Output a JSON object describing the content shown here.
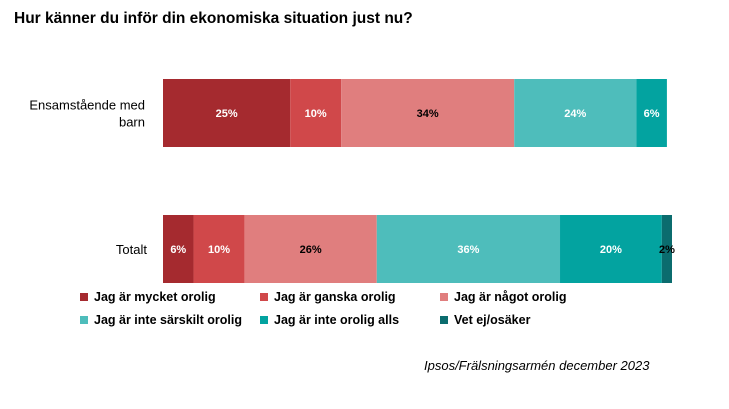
{
  "chart_data": {
    "type": "bar",
    "orientation": "horizontal",
    "stacked": true,
    "title": "Hur känner du inför din ekonomiska situation just nu?",
    "categories": [
      "Ensamstående med barn",
      "Totalt"
    ],
    "category_lines": [
      [
        "Ensamstående med",
        "barn"
      ],
      [
        "Totalt"
      ]
    ],
    "xlim": [
      0,
      100
    ],
    "grid": false,
    "legend_position": "bottom",
    "series": [
      {
        "name": "Jag är mycket orolig",
        "color": "#a52a2f",
        "label_color": "#ffffff",
        "values": [
          25,
          6
        ]
      },
      {
        "name": "Jag är ganska orolig",
        "color": "#d0484a",
        "label_color": "#ffffff",
        "values": [
          10,
          10
        ]
      },
      {
        "name": "Jag är något orolig",
        "color": "#e07e7e",
        "label_color": "#000000",
        "values": [
          34,
          26
        ]
      },
      {
        "name": "Jag är inte särskilt orolig",
        "color": "#4ebdbb",
        "label_color": "#ffffff",
        "values": [
          24,
          36
        ]
      },
      {
        "name": "Jag är inte orolig alls",
        "color": "#03a3a0",
        "label_color": "#ffffff",
        "values": [
          6,
          20
        ]
      },
      {
        "name": "Vet ej/osäker",
        "color": "#0b6c6e",
        "label_color": "#000000",
        "values": [
          0,
          2
        ]
      }
    ],
    "value_suffix": "%"
  },
  "source": "Ipsos/Frälsningsarmén december 2023"
}
